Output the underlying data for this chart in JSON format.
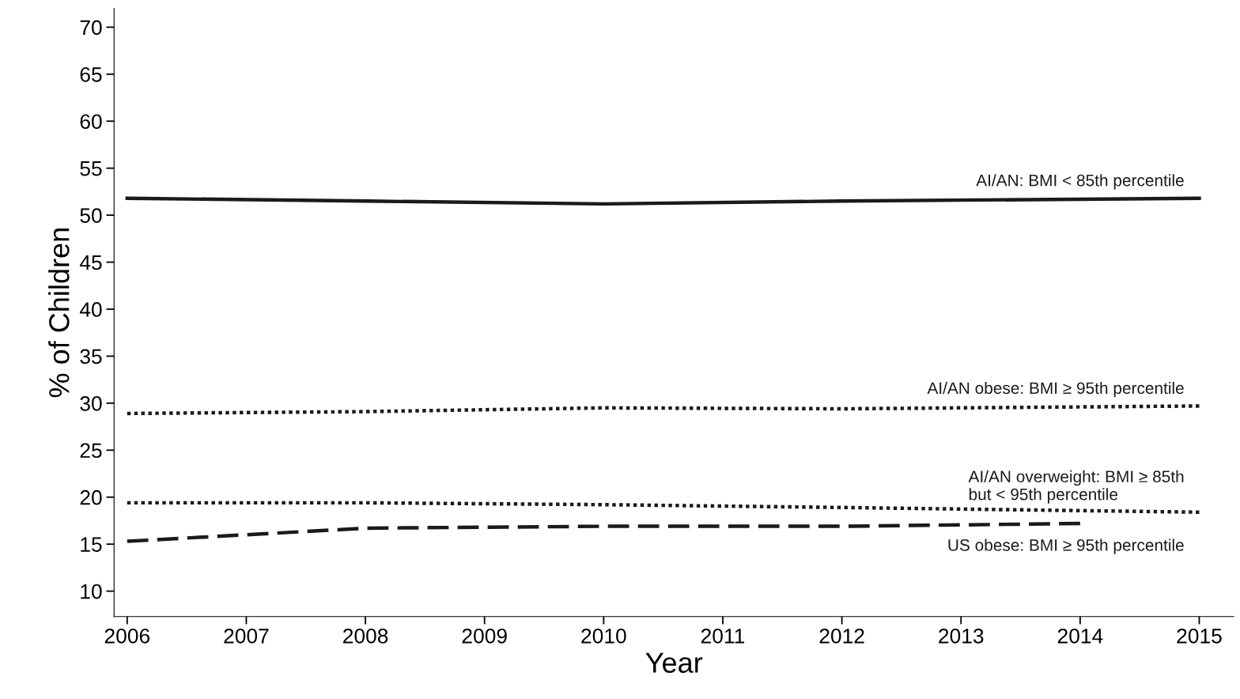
{
  "chart_data": {
    "type": "line",
    "xlabel": "Year",
    "ylabel": "% of Children",
    "xlim": [
      2005.89,
      2015.29
    ],
    "xticks": [
      2006,
      2007,
      2008,
      2009,
      2010,
      2011,
      2012,
      2013,
      2014,
      2015
    ],
    "ylim": [
      7.3,
      72
    ],
    "yticks": [
      10,
      15,
      20,
      25,
      30,
      35,
      40,
      45,
      50,
      55,
      60,
      65,
      70
    ],
    "grid": false,
    "legend": false,
    "marker": "none",
    "series": [
      {
        "name": "AI/AN: BMI < 85th percentile",
        "color": "#1a1a1a",
        "line_style": "solid",
        "x": [
          2006,
          2008,
          2010,
          2012,
          2015
        ],
        "values": [
          51.8,
          51.5,
          51.2,
          51.5,
          51.8
        ]
      },
      {
        "name": "AI/AN obese: BMI ≥ 95th percentile",
        "color": "#1a1a1a",
        "line_style": "dotted",
        "x": [
          2006,
          2008,
          2010,
          2012,
          2015
        ],
        "values": [
          28.9,
          29.1,
          29.5,
          29.4,
          29.7
        ]
      },
      {
        "name": "AI/AN overweight: BMI ≥ 85th\nbut < 95th percentile",
        "color": "#1a1a1a",
        "line_style": "dotted",
        "x": [
          2006,
          2008,
          2010,
          2012,
          2015
        ],
        "values": [
          19.4,
          19.4,
          19.2,
          18.9,
          18.4
        ]
      },
      {
        "name": "US obese: BMI ≥ 95th percentile",
        "color": "#1a1a1a",
        "line_style": "dashed",
        "x": [
          2006,
          2007,
          2008,
          2010,
          2012,
          2014
        ],
        "values": [
          15.3,
          16.0,
          16.7,
          16.9,
          16.9,
          17.2
        ]
      }
    ]
  }
}
